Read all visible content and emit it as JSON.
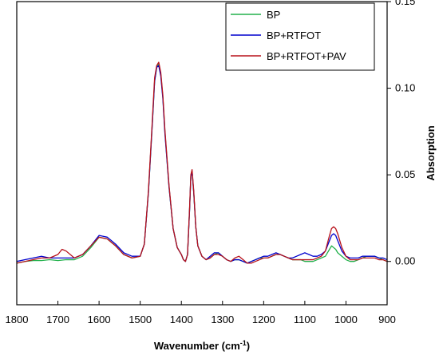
{
  "chart_data": {
    "type": "line",
    "title": "",
    "xlabel": "Wavenumber (cm",
    "xlabel_sup": "-1",
    "xlabel_close": ")",
    "ylabel": "Absorption",
    "xlim": [
      1800,
      900
    ],
    "ylim": [
      -0.025,
      0.15
    ],
    "x_reversed": true,
    "y_axis_side": "right",
    "grid": false,
    "legend_position": "top-right",
    "x_ticks": [
      1800,
      1700,
      1600,
      1500,
      1400,
      1300,
      1200,
      1100,
      1000,
      900
    ],
    "x_tick_labels": [
      "1800",
      "1700",
      "1600",
      "1500",
      "1400",
      "1300",
      "1200",
      "1100",
      "1000",
      "900"
    ],
    "y_ticks": [
      0.0,
      0.05,
      0.1,
      0.15
    ],
    "y_tick_labels": [
      "0.00",
      "0.05",
      "0.10",
      "0.15"
    ],
    "series": [
      {
        "name": "BP",
        "color": "#22b14c",
        "x": [
          1800,
          1780,
          1760,
          1740,
          1720,
          1700,
          1680,
          1660,
          1640,
          1620,
          1600,
          1580,
          1560,
          1540,
          1520,
          1500,
          1490,
          1480,
          1470,
          1465,
          1460,
          1455,
          1450,
          1445,
          1440,
          1430,
          1420,
          1410,
          1400,
          1395,
          1390,
          1385,
          1380,
          1377,
          1374,
          1370,
          1365,
          1360,
          1350,
          1340,
          1330,
          1320,
          1310,
          1300,
          1290,
          1280,
          1270,
          1260,
          1250,
          1240,
          1230,
          1220,
          1210,
          1200,
          1190,
          1180,
          1170,
          1160,
          1150,
          1140,
          1130,
          1120,
          1110,
          1100,
          1090,
          1080,
          1070,
          1060,
          1050,
          1040,
          1035,
          1030,
          1025,
          1020,
          1010,
          1000,
          990,
          980,
          970,
          960,
          950,
          940,
          930,
          920,
          910,
          900
        ],
        "y": [
          -0.001,
          0.0,
          0.0005,
          0.0005,
          0.001,
          0.0005,
          0.001,
          0.001,
          0.003,
          0.008,
          0.014,
          0.013,
          0.009,
          0.004,
          0.002,
          0.003,
          0.01,
          0.04,
          0.082,
          0.104,
          0.112,
          0.114,
          0.108,
          0.095,
          0.075,
          0.043,
          0.019,
          0.008,
          0.004,
          0.001,
          0.0,
          0.004,
          0.03,
          0.049,
          0.052,
          0.04,
          0.02,
          0.009,
          0.003,
          0.001,
          0.002,
          0.004,
          0.005,
          0.003,
          0.001,
          0.0,
          0.001,
          0.001,
          0.0,
          -0.001,
          0.0,
          0.001,
          0.002,
          0.002,
          0.002,
          0.003,
          0.004,
          0.004,
          0.003,
          0.002,
          0.001,
          0.001,
          0.001,
          0.0,
          0.0,
          0.0,
          0.001,
          0.002,
          0.003,
          0.007,
          0.009,
          0.008,
          0.007,
          0.005,
          0.003,
          0.001,
          0.0,
          0.0,
          0.001,
          0.002,
          0.003,
          0.003,
          0.003,
          0.002,
          0.001,
          0.0
        ]
      },
      {
        "name": "BP+RTFOT",
        "color": "#0000cd",
        "x": [
          1800,
          1780,
          1760,
          1740,
          1720,
          1700,
          1680,
          1660,
          1640,
          1620,
          1600,
          1580,
          1560,
          1540,
          1520,
          1500,
          1490,
          1480,
          1470,
          1465,
          1460,
          1455,
          1450,
          1445,
          1440,
          1430,
          1420,
          1410,
          1400,
          1395,
          1390,
          1385,
          1380,
          1377,
          1374,
          1370,
          1365,
          1360,
          1350,
          1340,
          1330,
          1320,
          1310,
          1300,
          1290,
          1280,
          1270,
          1260,
          1250,
          1240,
          1230,
          1220,
          1210,
          1200,
          1190,
          1180,
          1170,
          1160,
          1150,
          1140,
          1130,
          1120,
          1110,
          1100,
          1090,
          1080,
          1070,
          1060,
          1050,
          1040,
          1035,
          1030,
          1025,
          1020,
          1010,
          1000,
          990,
          980,
          970,
          960,
          950,
          940,
          930,
          920,
          910,
          900
        ],
        "y": [
          0.0,
          0.001,
          0.002,
          0.003,
          0.002,
          0.002,
          0.002,
          0.002,
          0.004,
          0.009,
          0.015,
          0.014,
          0.01,
          0.005,
          0.003,
          0.003,
          0.01,
          0.04,
          0.082,
          0.104,
          0.112,
          0.113,
          0.107,
          0.094,
          0.074,
          0.043,
          0.019,
          0.008,
          0.004,
          0.001,
          0.0,
          0.004,
          0.03,
          0.049,
          0.052,
          0.04,
          0.02,
          0.009,
          0.003,
          0.001,
          0.003,
          0.005,
          0.005,
          0.003,
          0.001,
          0.0,
          0.001,
          0.001,
          0.0,
          -0.001,
          0.0,
          0.001,
          0.002,
          0.003,
          0.003,
          0.004,
          0.005,
          0.004,
          0.003,
          0.002,
          0.002,
          0.003,
          0.004,
          0.005,
          0.004,
          0.003,
          0.003,
          0.004,
          0.006,
          0.012,
          0.015,
          0.016,
          0.015,
          0.012,
          0.006,
          0.003,
          0.002,
          0.002,
          0.002,
          0.003,
          0.003,
          0.003,
          0.003,
          0.002,
          0.002,
          0.001
        ]
      },
      {
        "name": "BP+RTFOT+PAV",
        "color": "#b8121b",
        "x": [
          1800,
          1780,
          1760,
          1740,
          1720,
          1700,
          1690,
          1680,
          1660,
          1640,
          1620,
          1600,
          1580,
          1560,
          1540,
          1520,
          1500,
          1490,
          1480,
          1470,
          1465,
          1460,
          1455,
          1450,
          1445,
          1440,
          1430,
          1420,
          1410,
          1400,
          1395,
          1390,
          1385,
          1380,
          1377,
          1374,
          1370,
          1365,
          1360,
          1350,
          1340,
          1330,
          1320,
          1310,
          1300,
          1290,
          1280,
          1270,
          1260,
          1250,
          1240,
          1230,
          1220,
          1210,
          1200,
          1190,
          1180,
          1170,
          1160,
          1150,
          1140,
          1130,
          1120,
          1110,
          1100,
          1090,
          1080,
          1070,
          1060,
          1050,
          1040,
          1035,
          1030,
          1025,
          1020,
          1010,
          1000,
          990,
          980,
          970,
          960,
          950,
          940,
          930,
          920,
          910,
          900
        ],
        "y": [
          -0.001,
          0.0,
          0.001,
          0.002,
          0.002,
          0.004,
          0.007,
          0.006,
          0.002,
          0.004,
          0.009,
          0.014,
          0.013,
          0.009,
          0.004,
          0.002,
          0.003,
          0.01,
          0.041,
          0.084,
          0.106,
          0.113,
          0.115,
          0.109,
          0.096,
          0.076,
          0.044,
          0.019,
          0.008,
          0.004,
          0.001,
          0.0,
          0.004,
          0.031,
          0.05,
          0.053,
          0.041,
          0.02,
          0.009,
          0.003,
          0.001,
          0.002,
          0.004,
          0.004,
          0.003,
          0.001,
          0.0,
          0.002,
          0.003,
          0.001,
          -0.001,
          -0.001,
          0.0,
          0.001,
          0.002,
          0.002,
          0.003,
          0.004,
          0.004,
          0.003,
          0.002,
          0.001,
          0.001,
          0.001,
          0.001,
          0.001,
          0.001,
          0.002,
          0.003,
          0.006,
          0.015,
          0.019,
          0.02,
          0.019,
          0.016,
          0.008,
          0.003,
          0.001,
          0.001,
          0.001,
          0.002,
          0.002,
          0.002,
          0.002,
          0.001,
          0.001,
          0.0
        ]
      }
    ]
  }
}
